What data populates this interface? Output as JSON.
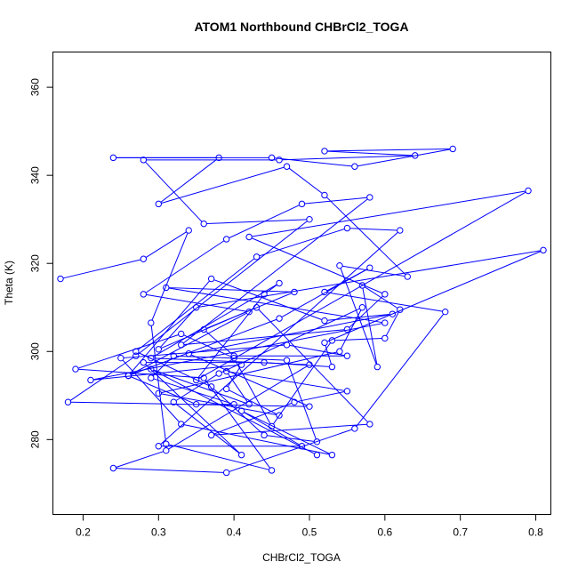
{
  "chart_data": {
    "type": "line",
    "title": "ATOM1 Northbound CHBrCl2_TOGA",
    "xlabel": "CHBrCl2_TOGA",
    "ylabel": "Theta (K)",
    "xlim": [
      0.16,
      0.82
    ],
    "ylim": [
      263,
      368
    ],
    "xticks": [
      0.2,
      0.3,
      0.4,
      0.5,
      0.6,
      0.7,
      0.8
    ],
    "xtick_labels": [
      "0.2",
      "0.3",
      "0.4",
      "0.5",
      "0.6",
      "0.7",
      "0.8"
    ],
    "yticks": [
      280,
      300,
      320,
      340,
      360
    ],
    "ytick_labels": [
      "280",
      "300",
      "320",
      "340",
      "360"
    ],
    "grid": false,
    "marker": "open-circle",
    "color": "#0000ff",
    "series": [
      {
        "x": [
          0.17,
          0.28,
          0.34,
          0.29,
          0.31,
          0.45,
          0.36,
          0.19,
          0.33,
          0.4,
          0.45,
          0.53,
          0.6,
          0.62,
          0.57,
          0.59,
          0.54,
          0.63,
          0.52,
          0.47,
          0.3,
          0.38,
          0.24,
          0.45,
          0.56,
          0.69,
          0.52,
          0.64,
          0.46,
          0.28,
          0.36,
          0.5,
          0.27,
          0.18,
          0.5,
          0.34,
          0.61,
          0.52,
          0.37,
          0.26,
          0.42,
          0.28,
          0.39,
          0.49,
          0.58,
          0.33,
          0.55,
          0.6,
          0.42,
          0.79,
          0.35,
          0.44,
          0.46,
          0.29,
          0.5,
          0.31,
          0.24,
          0.39,
          0.56,
          0.68,
          0.52,
          0.58,
          0.46,
          0.26,
          0.35,
          0.4,
          0.29,
          0.32,
          0.47,
          0.51,
          0.44,
          0.37,
          0.27,
          0.43,
          0.55,
          0.62,
          0.3,
          0.49,
          0.41,
          0.53,
          0.33,
          0.25,
          0.47,
          0.55,
          0.4,
          0.36,
          0.48,
          0.31,
          0.6,
          0.21,
          0.41,
          0.39,
          0.46,
          0.3,
          0.54,
          0.57,
          0.38,
          0.32,
          0.41,
          0.28,
          0.44,
          0.53,
          0.52,
          0.81,
          0.35,
          0.3,
          0.43,
          0.58,
          0.37,
          0.48,
          0.55,
          0.39,
          0.42,
          0.29,
          0.51
        ],
        "y": [
          316.5,
          321.0,
          327.5,
          306.5,
          279.0,
          273.0,
          294.0,
          296.0,
          304.0,
          298.5,
          283.0,
          302.5,
          303.0,
          309.5,
          315.0,
          296.5,
          319.5,
          317.0,
          335.5,
          342.0,
          333.5,
          344.0,
          344.0,
          344.0,
          342.0,
          346.0,
          345.5,
          344.5,
          343.5,
          343.5,
          329.0,
          330.0,
          299.0,
          288.5,
          287.5,
          299.5,
          308.5,
          307.0,
          316.5,
          294.5,
          309.0,
          313.0,
          325.5,
          333.5,
          335.0,
          301.5,
          305.0,
          313.0,
          326.0,
          336.5,
          293.5,
          313.0,
          315.5,
          298.5,
          297.0,
          277.5,
          273.5,
          272.5,
          282.5,
          309.0,
          313.5,
          319.0,
          307.5,
          294.5,
          288.0,
          288.0,
          294.0,
          299.0,
          298.0,
          279.5,
          281.0,
          292.0,
          300.0,
          321.5,
          328.0,
          327.5,
          278.5,
          278.5,
          286.5,
          276.5,
          283.5,
          298.5,
          301.5,
          299.0,
          299.0,
          305.0,
          313.5,
          314.5,
          306.5,
          293.5,
          297.0,
          291.5,
          285.5,
          290.5,
          300.0,
          310.0,
          295.0,
          288.5,
          276.5,
          297.5,
          297.5,
          296.5,
          302.0,
          323.0,
          310.0,
          300.5,
          310.0,
          283.5,
          281.0,
          288.5,
          291.0,
          295.5,
          288.0,
          296.0,
          276.5
        ]
      }
    ]
  }
}
